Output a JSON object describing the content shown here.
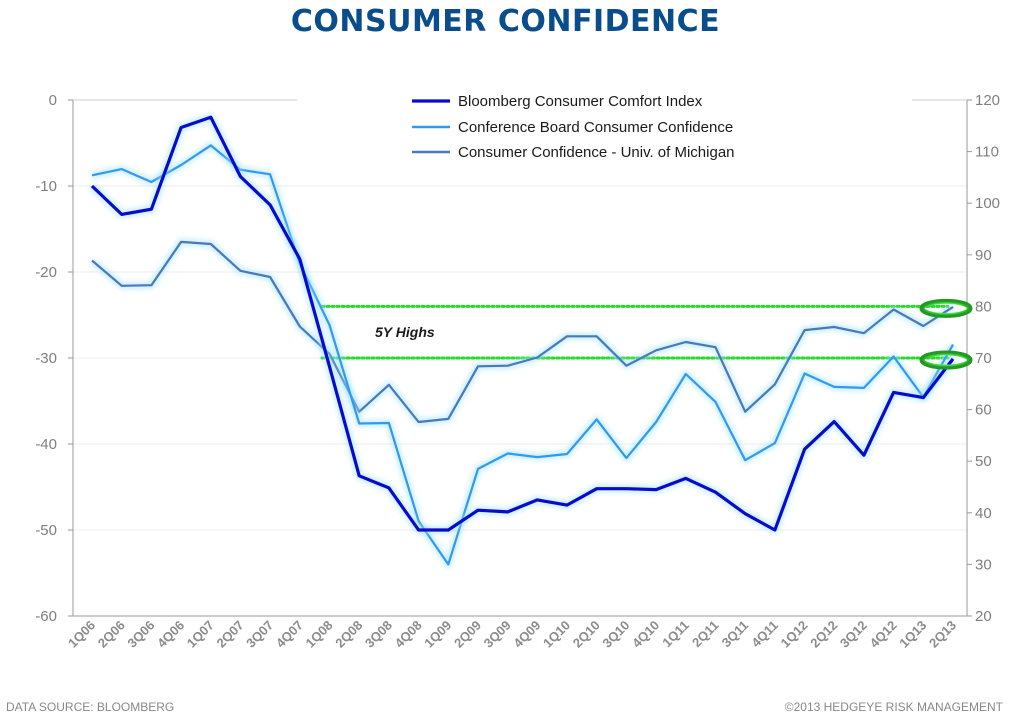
{
  "header": {
    "title": "CONSUMER CONFIDENCE"
  },
  "footer": {
    "source": "DATA SOURCE:  BLOOMBERG",
    "copyright": "©2013 HEDGEYE RISK MANAGEMENT"
  },
  "chart_data": {
    "type": "line",
    "title": "CONSUMER CONFIDENCE",
    "categories": [
      "1Q06",
      "2Q06",
      "3Q06",
      "4Q06",
      "1Q07",
      "2Q07",
      "3Q07",
      "4Q07",
      "1Q08",
      "2Q08",
      "3Q08",
      "4Q08",
      "1Q09",
      "2Q09",
      "3Q09",
      "4Q09",
      "1Q10",
      "2Q10",
      "3Q10",
      "4Q10",
      "1Q11",
      "2Q11",
      "3Q11",
      "4Q11",
      "1Q12",
      "2Q12",
      "3Q12",
      "4Q12",
      "1Q13",
      "2Q13"
    ],
    "y_left": {
      "min": -60,
      "max": 0,
      "ticks": [
        0,
        -10,
        -20,
        -30,
        -40,
        -50,
        -60
      ],
      "tick_labels": [
        "0",
        "-10",
        "-20",
        "-30",
        "-40",
        "-50",
        "-60"
      ]
    },
    "y_right": {
      "min": 20,
      "max": 120,
      "ticks": [
        120,
        110,
        100,
        90,
        80,
        70,
        60,
        50,
        40,
        30,
        20
      ],
      "tick_labels": [
        "120",
        "110",
        "100",
        "90",
        "80",
        "70",
        "60",
        "50",
        "40",
        "30",
        "20"
      ]
    },
    "grid": true,
    "legend_position": "top-right",
    "series": [
      {
        "name": "Bloomberg Consumer Comfort Index",
        "axis": "left",
        "color": "#0a0acc",
        "values": [
          -10,
          -13.3,
          -12.7,
          -3.2,
          -2,
          -8.9,
          -12.2,
          -18.5,
          -31,
          -43.7,
          -45.1,
          -50,
          -50,
          -47.7,
          -47.9,
          -46.5,
          -47.1,
          -45.2,
          -45.2,
          -45.3,
          -44,
          -45.6,
          -48.1,
          -50,
          -40.6,
          -37.4,
          -41.3,
          -34,
          -34.6,
          -30.1
        ]
      },
      {
        "name": "Conference Board Consumer Confidence",
        "axis": "right",
        "color": "#3399ee",
        "values": [
          105.4,
          106.6,
          104.1,
          107.4,
          111.2,
          106.5,
          105.6,
          88.3,
          76.4,
          57.3,
          57.4,
          38.4,
          30,
          48.5,
          51.5,
          50.8,
          51.4,
          58.1,
          50.6,
          57.6,
          66.9,
          61.5,
          50.2,
          53.5,
          67,
          64.4,
          64.2,
          70.3,
          62.4,
          72.6
        ]
      },
      {
        "name": "Consumer Confidence - Univ. of Michigan",
        "axis": "right",
        "color": "#4a78b8",
        "values": [
          88.9,
          84.0,
          84.1,
          92.5,
          92.1,
          86.9,
          85.7,
          76.1,
          70.8,
          59.6,
          64.8,
          57.6,
          58.2,
          68.4,
          68.5,
          70.1,
          74.2,
          74.2,
          68.5,
          71.5,
          73.1,
          72.1,
          59.6,
          64.9,
          75.4,
          76,
          74.8,
          79.4,
          76.2,
          79.9
        ]
      }
    ],
    "reference_lines": [
      {
        "axis": "right",
        "value": 80,
        "color": "#22dd22",
        "style": "dotted"
      },
      {
        "axis": "right",
        "value": 70,
        "color": "#22dd22",
        "style": "dotted"
      }
    ],
    "annotations": [
      {
        "text": "5Y Highs"
      }
    ]
  }
}
